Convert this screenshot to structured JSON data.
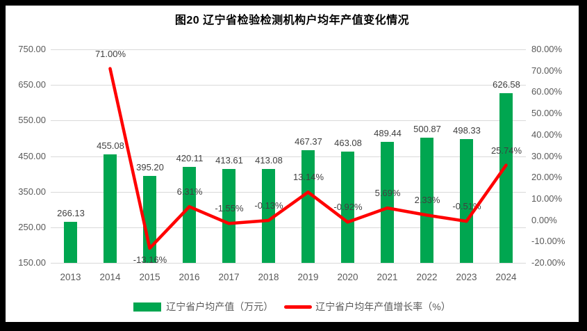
{
  "title": "图20 辽宁省检验检测机构户均年产值变化情况",
  "colors": {
    "bar_green": "#00A650",
    "line_red": "#FF0000",
    "grid": "#D9D9D9",
    "axis_text": "#595959",
    "label_text": "#404040",
    "frame": "#000000",
    "background": "#FFFFFF"
  },
  "chart_data": {
    "type": "bar",
    "subtype": "combo-bar-line",
    "title": "图20 辽宁省检验检测机构户均年产值变化情况",
    "categories": [
      "2013",
      "2014",
      "2015",
      "2016",
      "2017",
      "2018",
      "2019",
      "2020",
      "2021",
      "2022",
      "2023",
      "2024"
    ],
    "series": [
      {
        "name": "辽宁省户均产值（万元）",
        "type": "bar",
        "axis": "left",
        "color": "#00A650",
        "values": [
          266.13,
          455.08,
          395.2,
          420.11,
          413.61,
          413.08,
          467.37,
          463.08,
          489.44,
          500.87,
          498.33,
          626.58
        ],
        "labels": [
          "266.13",
          "455.08",
          "395.20",
          "420.11",
          "413.61",
          "413.08",
          "467.37",
          "463.08",
          "489.44",
          "500.87",
          "498.33",
          "626.58"
        ]
      },
      {
        "name": "辽宁省户均年产值增长率（%）",
        "type": "line",
        "axis": "right",
        "color": "#FF0000",
        "values": [
          null,
          71.0,
          -13.16,
          6.31,
          -1.55,
          -0.13,
          13.14,
          -0.92,
          5.69,
          2.33,
          -0.51,
          25.74
        ],
        "labels": [
          null,
          "71.00%",
          "-13.16%",
          "6.31%",
          "-1.55%",
          "-0.13%",
          "13.14%",
          "-0.92%",
          "5.69%",
          "2.33%",
          "-0.51%",
          "25.74%"
        ]
      }
    ],
    "left_axis": {
      "min": 150,
      "max": 750,
      "step": 100,
      "tick_values": [
        750,
        650,
        550,
        450,
        350,
        250,
        150
      ],
      "tick_labels": [
        "750.00",
        "650.00",
        "550.00",
        "450.00",
        "350.00",
        "250.00",
        "150.00"
      ]
    },
    "right_axis": {
      "min": -20,
      "max": 80,
      "step": 10,
      "tick_values": [
        80,
        70,
        60,
        50,
        40,
        30,
        20,
        10,
        0,
        -10,
        -20
      ],
      "tick_labels": [
        "80.00%",
        "70.00%",
        "60.00%",
        "50.00%",
        "40.00%",
        "30.00%",
        "20.00%",
        "10.00%",
        "0.00%",
        "-10.00%",
        "-20.00%"
      ]
    },
    "grid": true,
    "legend_position": "bottom"
  },
  "legend": {
    "bar_label": "辽宁省户均产值（万元）",
    "line_label": "辽宁省户均年产值增长率（%）"
  }
}
